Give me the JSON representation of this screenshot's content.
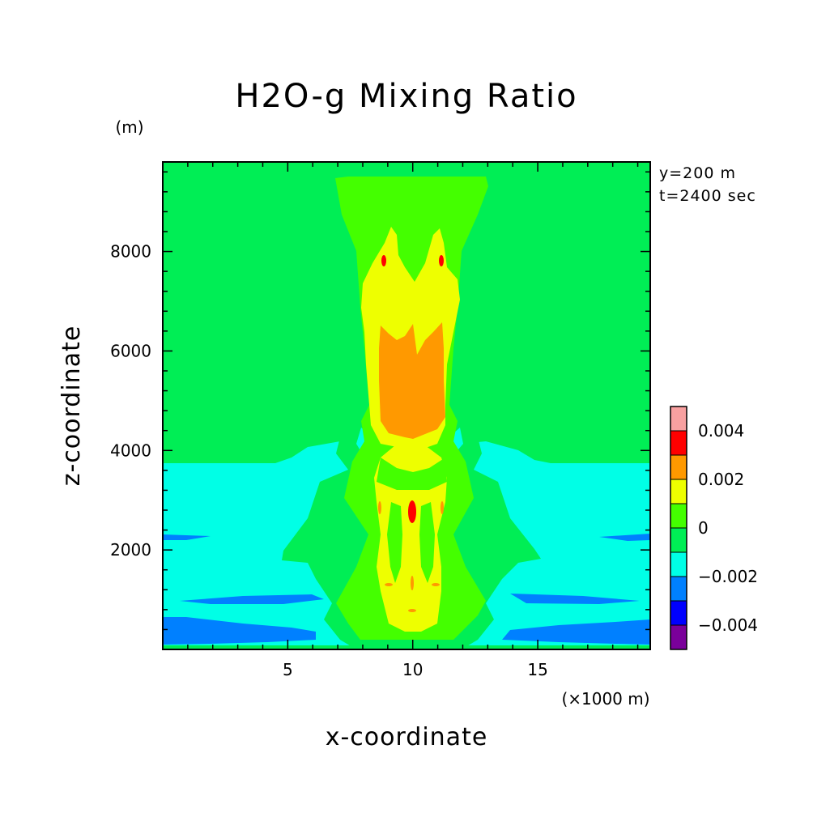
{
  "chart_data": {
    "type": "filled_contour",
    "title": "H2O-g Mixing Ratio",
    "xlabel": "x-coordinate",
    "ylabel": "z-coordinate",
    "x_unit": "(×1000 m)",
    "y_unit": "(m)",
    "annotations": [
      "y=200 m",
      "t=2400 sec"
    ],
    "xlim": [
      0,
      19.5
    ],
    "ylim": [
      0,
      9800
    ],
    "x_ticks": [
      5,
      10,
      15
    ],
    "y_ticks": [
      2000,
      4000,
      6000,
      8000
    ],
    "colorbar": {
      "levels": [
        -0.005,
        -0.004,
        -0.003,
        -0.002,
        -0.001,
        0,
        0.001,
        0.002,
        0.003,
        0.004,
        0.005
      ],
      "tick_labels": [
        "0.004",
        "0.002",
        "0",
        "−0.002",
        "−0.004"
      ],
      "tick_values": [
        0.004,
        0.002,
        0,
        -0.002,
        -0.004
      ],
      "colors": [
        "#7a009a",
        "#0000ff",
        "#0080ff",
        "#00ffe6",
        "#00ee55",
        "#44ff00",
        "#eeff00",
        "#ff9900",
        "#ff0000",
        "#f8a0a0"
      ]
    },
    "background_level_above_3800m": "0 to 0.001",
    "background_level_below_3800m": "-0.001 to 0",
    "plume_center_x": 10.2,
    "plume_core_max_approx": 0.0035,
    "plume_core_max_height_z": 2800
  }
}
